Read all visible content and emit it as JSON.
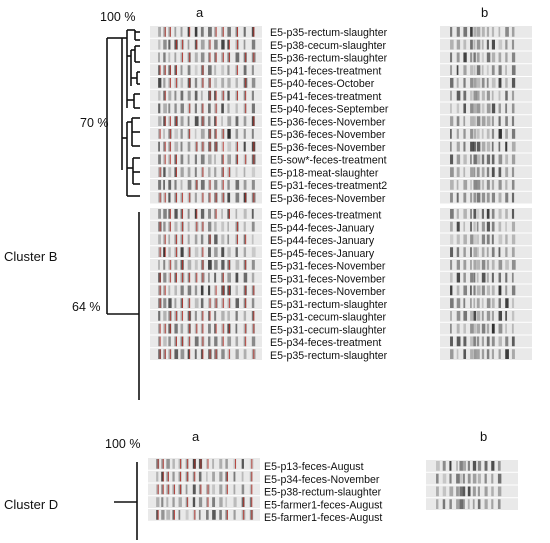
{
  "figure": {
    "cluster_b": {
      "name": "Cluster B",
      "scale_top": "100 %",
      "mid_label": "70 %",
      "join_label": "64 %",
      "col_a": "a",
      "col_b": "b",
      "samples": [
        "E5-p35-rectum-slaughter",
        "E5-p38-cecum-slaughter",
        "E5-p36-rectum-slaughter",
        "E5-p41-feces-treatment",
        "E5-p40-feces-October",
        "E5-p41-feces-treatment",
        "E5-p40-feces-September",
        "E5-p36-feces-November",
        "E5-p36-feces-November",
        "E5-p36-feces-November",
        "E5-sow*-feces-treatment",
        "E5-p18-meat-slaughter",
        "E5-p31-feces-treatment2",
        "E5-p36-feces-November",
        "E5-p46-feces-treatment",
        "E5-p44-feces-January",
        "E5-p44-feces-January",
        "E5-p45-feces-January",
        "E5-p31-feces-November",
        "E5-p31-feces-November",
        "E5-p31-feces-November",
        "E5-p31-rectum-slaughter",
        "E5-p31-cecum-slaughter",
        "E5-p31-cecum-slaughter",
        "E5-p34-feces-treatment",
        "E5-p35-rectum-slaughter"
      ]
    },
    "cluster_d": {
      "name": "Cluster D",
      "scale_top": "100 %",
      "col_a": "a",
      "col_b": "b",
      "samples": [
        "E5-p13-feces-August",
        "E5-p34-feces-November",
        "E5-p38-rectum-slaughter",
        "E5-farmer1-feces-August",
        "E5-farmer1-feces-August"
      ]
    }
  }
}
